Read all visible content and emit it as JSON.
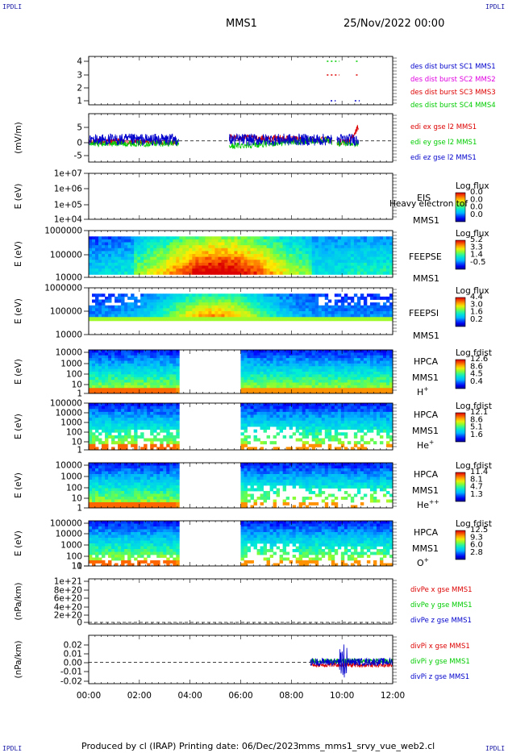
{
  "header": {
    "corner_left_top": "IPDLI",
    "corner_right_top": "IPDLI",
    "mission": "MMS1",
    "date": "25/Nov/2022 00:00"
  },
  "footer": {
    "credit": "Produced by cl (IRAP)",
    "printing": "Printing date: 06/Dec/2023",
    "file": "mms_mms1_srvy_vue_web2.cl",
    "corner_left_bottom": "IPDLI",
    "corner_right_bottom": "IPDLI"
  },
  "colors": {
    "mms1": "#0000cc",
    "mms2": "#e000e0",
    "mms3": "#dd0000",
    "mms4": "#00cc00",
    "ex": "#dd0000",
    "ey": "#00cc00",
    "ez": "#0000cc"
  },
  "chart_data": [
    {
      "id": "burst",
      "type": "line",
      "yticks": [
        "4",
        "3",
        "2",
        "1"
      ],
      "legend": [
        {
          "text": "des dist burst SC1 MMS1",
          "color": "#0000cc"
        },
        {
          "text": "des dist burst SC2 MMS2",
          "color": "#e000e0"
        },
        {
          "text": "des dist burst SC3 MMS3",
          "color": "#dd0000"
        },
        {
          "text": "des dist burst SC4 MMS4",
          "color": "#00cc00"
        }
      ],
      "intervals": [
        {
          "level": 4,
          "start": 9.4,
          "end": 9.9,
          "color": "#00cc00"
        },
        {
          "level": 4,
          "start": 10.55,
          "end": 10.7,
          "color": "#00cc00"
        },
        {
          "level": 3,
          "start": 9.4,
          "end": 9.9,
          "color": "#dd0000"
        },
        {
          "level": 3,
          "start": 10.55,
          "end": 10.7,
          "color": "#dd0000"
        },
        {
          "level": 1,
          "start": 9.55,
          "end": 9.75,
          "color": "#0000cc"
        },
        {
          "level": 1,
          "start": 10.5,
          "end": 10.7,
          "color": "#0000cc"
        }
      ]
    },
    {
      "id": "edi",
      "type": "line",
      "ylabel": "(mV/m)",
      "yticks": [
        "5",
        "0",
        "-5"
      ],
      "ylim": [
        -7,
        9
      ],
      "legend": [
        {
          "text": "edi ex gse l2 MMS1",
          "color": "#dd0000"
        },
        {
          "text": "edi ey gse l2 MMS1",
          "color": "#00cc00"
        },
        {
          "text": "edi ez gse l2 MMS1",
          "color": "#0000cc"
        }
      ],
      "segments": [
        [
          0,
          3.55
        ],
        [
          5.55,
          9.6
        ],
        [
          9.8,
          10.65
        ]
      ]
    },
    {
      "id": "eis",
      "type": "heatmap",
      "ylabel": "E (eV)",
      "yticks": [
        "1e+07",
        "1e+06",
        "1e+05",
        "1e+04"
      ],
      "instrument": "EIS",
      "overlay": "Heavy electron tof",
      "spacecraft": "MMS1",
      "colorbar": {
        "title": "Log flux",
        "ticks": [
          "0.0",
          "0.0",
          "0.0",
          "0.0"
        ]
      }
    },
    {
      "id": "feepse",
      "type": "heatmap",
      "ylabel": "E (eV)",
      "yticks": [
        "1000000",
        "100000",
        "10000"
      ],
      "instrument": "FEEPSE",
      "spacecraft": "MMS1",
      "colorbar": {
        "title": "Log flux",
        "ticks": [
          "5.2",
          "3.3",
          "1.4",
          "-0.5"
        ]
      }
    },
    {
      "id": "feepsi",
      "type": "heatmap",
      "ylabel": "E (eV)",
      "yticks": [
        "1000000",
        "100000",
        "10000"
      ],
      "instrument": "FEEPSI",
      "spacecraft": "MMS1",
      "colorbar": {
        "title": "Log flux",
        "ticks": [
          "4.4",
          "3.0",
          "1.6",
          "0.2"
        ]
      }
    },
    {
      "id": "hpca_h",
      "type": "heatmap",
      "ylabel": "E (eV)",
      "yticks": [
        "10000",
        "1000",
        "100",
        "10",
        "1"
      ],
      "instrument": "HPCA",
      "spacecraft": "MMS1",
      "species": "H",
      "charge": "+",
      "colorbar": {
        "title": "Log fdist",
        "ticks": [
          "12.6",
          "8.6",
          "4.5",
          "0.4"
        ]
      },
      "gap": [
        3.55,
        6.05
      ]
    },
    {
      "id": "hpca_he",
      "type": "heatmap",
      "ylabel": "E (eV)",
      "yticks": [
        "100000",
        "10000",
        "1000",
        "100",
        "10",
        "1"
      ],
      "instrument": "HPCA",
      "spacecraft": "MMS1",
      "species": "He",
      "charge": "+",
      "colorbar": {
        "title": "Log fdist",
        "ticks": [
          "12.1",
          "8.6",
          "5.1",
          "1.6"
        ]
      },
      "gap": [
        3.55,
        6.05
      ]
    },
    {
      "id": "hpca_he2",
      "type": "heatmap",
      "ylabel": "E (eV)",
      "yticks": [
        "10000",
        "1000",
        "100",
        "10",
        "1"
      ],
      "instrument": "HPCA",
      "spacecraft": "MMS1",
      "species": "He",
      "charge": "++",
      "colorbar": {
        "title": "Log fdist",
        "ticks": [
          "11.4",
          "8.1",
          "4.7",
          "1.3"
        ]
      },
      "gap": [
        3.55,
        6.05
      ]
    },
    {
      "id": "hpca_o",
      "type": "heatmap",
      "ylabel": "E (eV)",
      "yticks": [
        "100000",
        "10000",
        "1000",
        "100",
        "10",
        "1"
      ],
      "instrument": "HPCA",
      "spacecraft": "MMS1",
      "species": "O",
      "charge": "+",
      "colorbar": {
        "title": "Log fdist",
        "ticks": [
          "12.5",
          "9.3",
          "6.0",
          "2.8"
        ]
      },
      "gap": [
        3.55,
        6.05
      ]
    },
    {
      "id": "divpe",
      "type": "line",
      "ylabel": "(nPa/km)",
      "yticks": [
        "1e+21",
        "8e+20",
        "6e+20",
        "4e+20",
        "2e+20",
        "0"
      ],
      "legend": [
        {
          "text": "divPe x gse MMS1",
          "color": "#dd0000"
        },
        {
          "text": "divPe y gse MMS1",
          "color": "#00cc00"
        },
        {
          "text": "divPe z gse MMS1",
          "color": "#0000cc"
        }
      ]
    },
    {
      "id": "divpi",
      "type": "line",
      "ylabel": "(nPa/km)",
      "yticks": [
        "0.02",
        "0.01",
        "0.00",
        "-0.01",
        "-0.02"
      ],
      "ylim": [
        -0.022,
        0.028
      ],
      "legend": [
        {
          "text": "divPi x gse MMS1",
          "color": "#dd0000"
        },
        {
          "text": "divPi y gse MMS1",
          "color": "#00cc00"
        },
        {
          "text": "divPi z gse MMS1",
          "color": "#0000cc"
        }
      ],
      "segments": [
        [
          8.75,
          12
        ]
      ]
    }
  ],
  "xaxis": {
    "ticks": [
      "00:00",
      "02:00",
      "04:00",
      "06:00",
      "08:00",
      "10:00",
      "12:00"
    ],
    "range_hours": [
      0,
      12
    ]
  }
}
